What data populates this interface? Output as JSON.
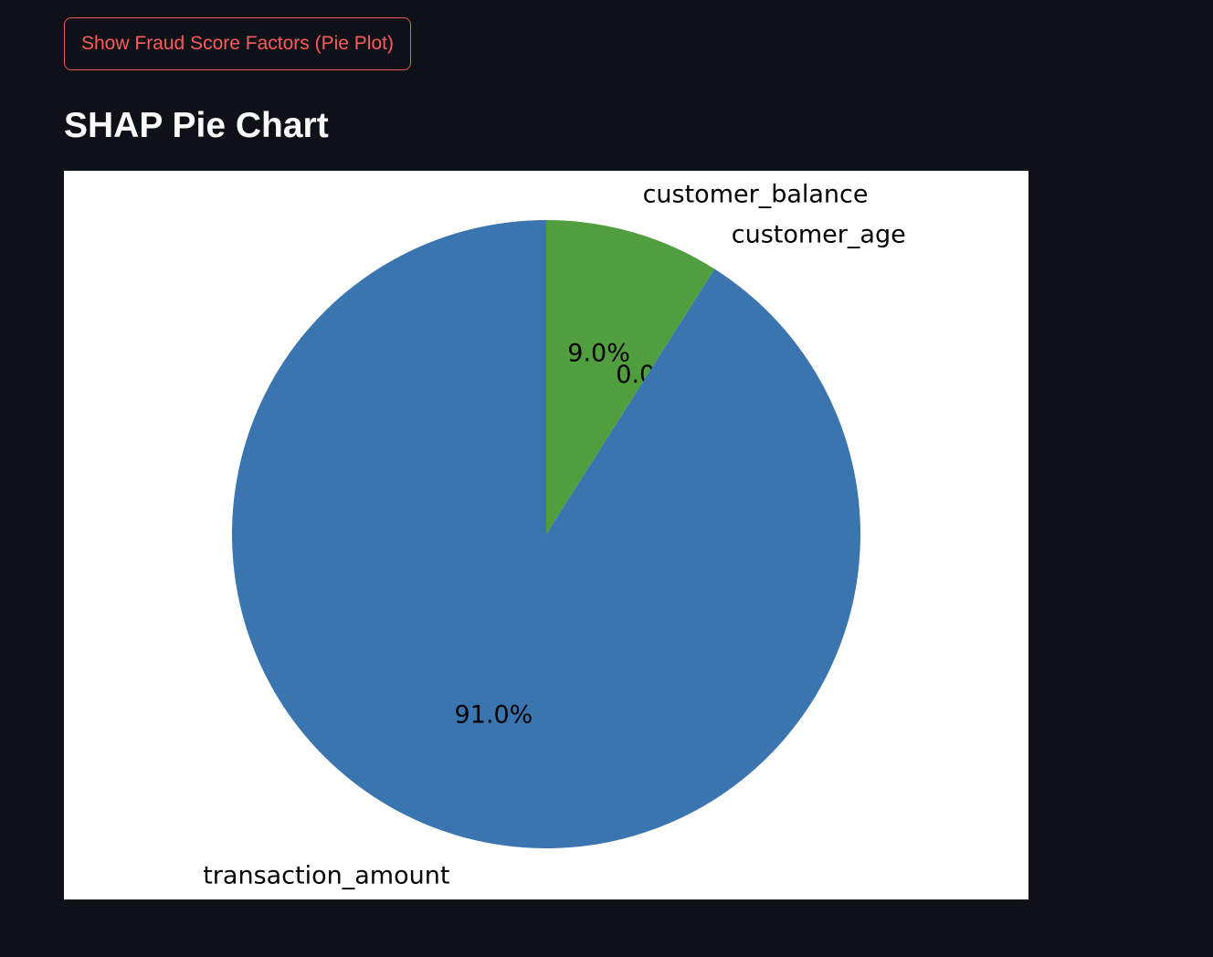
{
  "controls": {
    "show_button_label": "Show Fraud Score Factors (Pie Plot)"
  },
  "section": {
    "title": "SHAP Pie Chart"
  },
  "chart_data": {
    "type": "pie",
    "start_angle_deg": 90,
    "direction": "clockwise",
    "slices": [
      {
        "label": "customer_balance",
        "percent": 9.0,
        "pct_text": "9.0%",
        "color": "#519e3e"
      },
      {
        "label": "customer_age",
        "percent": 0.0,
        "pct_text": "0.0%",
        "color": "#3b75af"
      },
      {
        "label": "transaction_amount",
        "percent": 91.0,
        "pct_text": "91.0%",
        "color": "#3b75af"
      }
    ]
  }
}
